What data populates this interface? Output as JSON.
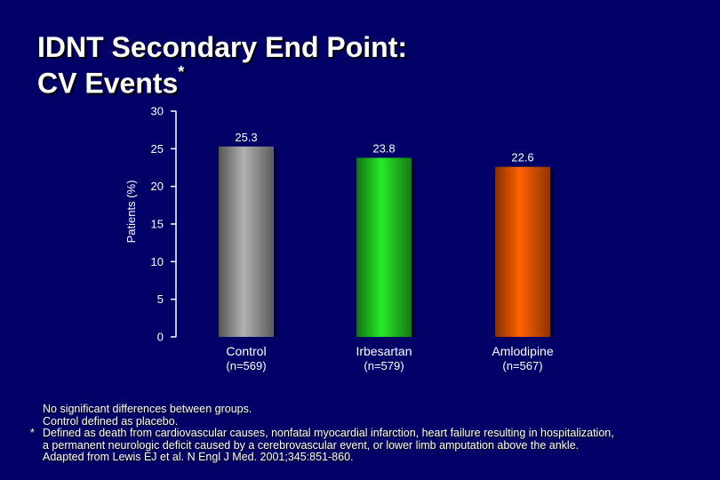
{
  "slide": {
    "title_line1": "IDNT Secondary End Point:",
    "title_line2": "CV Events",
    "title_marker": "*"
  },
  "chart_data": {
    "type": "bar",
    "categories": [
      "Control",
      "Irbesartan",
      "Amlodipine"
    ],
    "category_subtitles": [
      "(n=569)",
      "(n=579)",
      "(n=567)"
    ],
    "values": [
      25.3,
      23.8,
      22.6
    ],
    "value_labels": [
      "25.3",
      "23.8",
      "22.6"
    ],
    "bar_colors": [
      "#9a9a9a",
      "#22cc22",
      "#ee5500"
    ],
    "ylabel": "Patients (%)",
    "ylim": [
      0,
      30
    ],
    "yticks": [
      0,
      5,
      10,
      15,
      20,
      25,
      30
    ],
    "grid": false,
    "axis_color": "#ffffff"
  },
  "footnotes": {
    "line1": "No significant differences between groups.",
    "line2": "Control defined as placebo.",
    "line3_marker": "*",
    "line3": "Defined as death from cardiovascular causes, nonfatal myocardial infarction, heart failure resulting in hospitalization,",
    "line4": "a permanent neurologic deficit caused by a cerebrovascular event, or lower limb amputation above the ankle.",
    "line5": "Adapted from Lewis EJ et al. N Engl J Med. 2001;345:851-860."
  }
}
